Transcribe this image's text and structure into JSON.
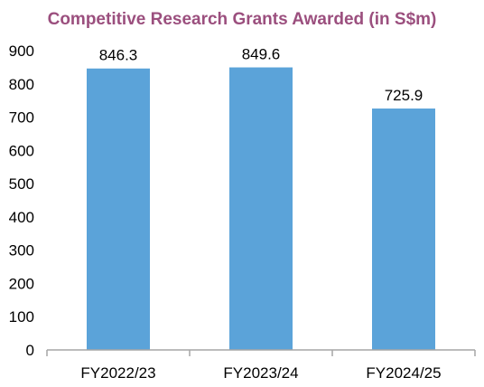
{
  "chart_data": {
    "type": "bar",
    "title": "Competitive Research Grants Awarded (in S$m)",
    "xlabel": "",
    "ylabel": "",
    "categories": [
      "FY2022/23",
      "FY2023/24",
      "FY2024/25"
    ],
    "values": [
      846.3,
      849.6,
      725.9
    ],
    "data_labels": [
      "846.3",
      "849.6",
      "725.9"
    ],
    "ylim": [
      0,
      900
    ],
    "y_ticks": [
      0,
      100,
      200,
      300,
      400,
      500,
      600,
      700,
      800,
      900
    ],
    "grid": false,
    "legend": "none",
    "colors": {
      "bar": "#5ba3d9",
      "title": "#9b4f7e",
      "axis": "#a6a6a6"
    }
  }
}
